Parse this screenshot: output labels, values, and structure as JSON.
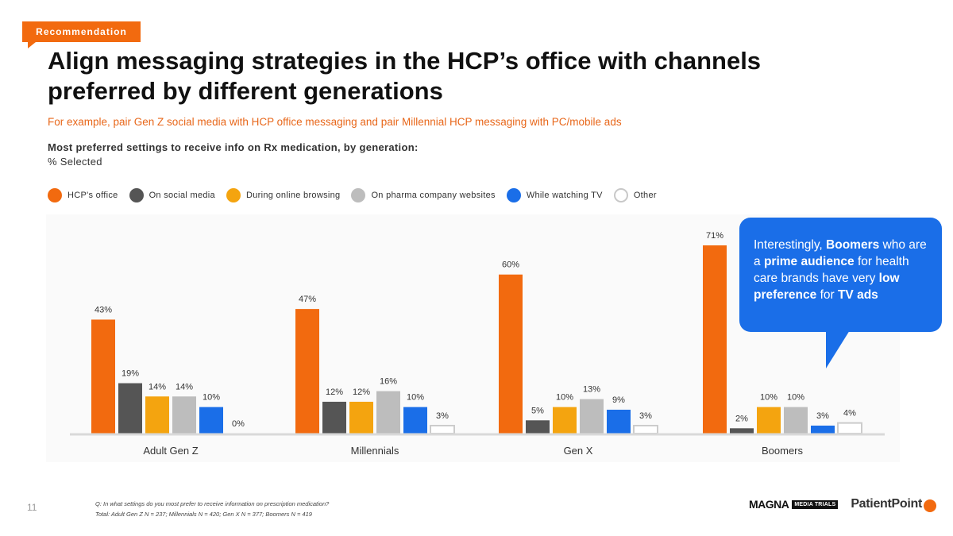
{
  "header": {
    "tag": "Recommendation",
    "title": "Align messaging strategies in the HCP’s office with channels preferred by different generations",
    "subtitle": "For example, pair Gen Z social media with HCP office messaging and pair Millennial HCP messaging with PC/mobile ads",
    "question_title": "Most preferred settings to receive info on Rx medication, by generation:",
    "question_sub": "% Selected"
  },
  "legend": [
    {
      "label": "HCP's office",
      "color": "#f26a0f"
    },
    {
      "label": "On social media",
      "color": "#555555"
    },
    {
      "label": "During online browsing",
      "color": "#f4a40f"
    },
    {
      "label": "On pharma company websites",
      "color": "#bdbdbd"
    },
    {
      "label": "While watching TV",
      "color": "#1a6ee8"
    },
    {
      "label": "Other",
      "color": "#ffffff"
    }
  ],
  "chart_data": {
    "type": "bar",
    "title": "Most preferred settings to receive info on Rx medication, by generation",
    "ylabel": "% Selected",
    "categories": [
      "Adult Gen Z",
      "Millennials",
      "Gen X",
      "Boomers"
    ],
    "series": [
      {
        "name": "HCP's office",
        "color": "#f26a0f",
        "values": [
          43,
          47,
          60,
          71
        ],
        "labels": [
          "43%",
          "47%",
          "60%",
          "71%"
        ]
      },
      {
        "name": "On social media",
        "color": "#555555",
        "values": [
          19,
          12,
          5,
          2
        ],
        "labels": [
          "19%",
          "12%",
          "5%",
          "2%"
        ]
      },
      {
        "name": "During online browsing",
        "color": "#f4a40f",
        "values": [
          14,
          12,
          10,
          10
        ],
        "labels": [
          "14%",
          "12%",
          "10%",
          "10%"
        ]
      },
      {
        "name": "On pharma company websites",
        "color": "#bdbdbd",
        "values": [
          14,
          16,
          13,
          10
        ],
        "labels": [
          "14%",
          "16%",
          "13%",
          "10%"
        ]
      },
      {
        "name": "While watching TV",
        "color": "#1a6ee8",
        "values": [
          10,
          10,
          9,
          3
        ],
        "labels": [
          "10%",
          "10%",
          "9%",
          "3%"
        ]
      },
      {
        "name": "Other",
        "color": "#ffffff",
        "values": [
          0,
          3,
          3,
          4
        ],
        "labels": [
          "0%",
          "3%",
          "3%",
          "4%"
        ]
      }
    ],
    "ylim": [
      0,
      75
    ]
  },
  "callout": {
    "p1": "Interestingly, ",
    "b1": "Boomers",
    "p2": " who are a ",
    "b2": "prime audience",
    "p3": " for health care brands have very ",
    "b3": "low preference",
    "p4": " for ",
    "b4": "TV ads"
  },
  "footer": {
    "page": "11",
    "q": "Q: In what settings do you most prefer to receive information on prescription medication?",
    "base": "Total: Adult Gen Z N = 237; Millennials N = 420; Gen X N = 377; Boomers N = 419",
    "logo_magna": "MAGNA",
    "logo_media_trials": "MEDIA TRIALS",
    "logo_patientpoint": "PatientPoint"
  }
}
